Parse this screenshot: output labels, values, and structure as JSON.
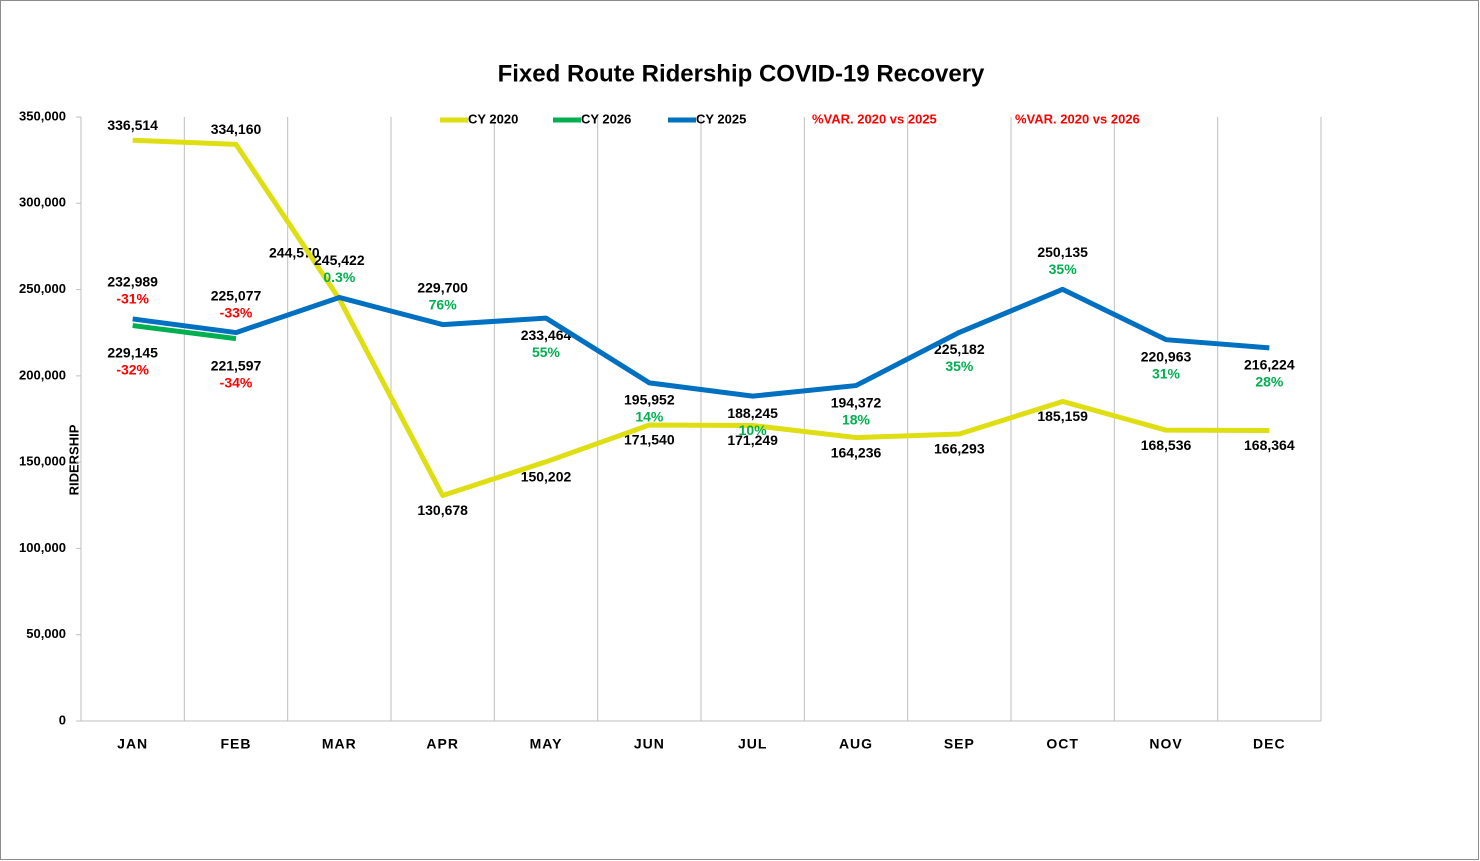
{
  "chart_data": {
    "type": "line",
    "title": "Fixed Route Ridership COVID-19 Recovery",
    "y_label": "RIDERSHIP",
    "categories": [
      "JAN",
      "FEB",
      "MAR",
      "APR",
      "MAY",
      "JUN",
      "JUL",
      "AUG",
      "SEP",
      "OCT",
      "NOV",
      "DEC"
    ],
    "ylim": [
      0,
      350000
    ],
    "yticks": [
      0,
      {
        "value": 50000,
        "label": "50,000"
      },
      {
        "value": 100000,
        "label": "100,000"
      },
      {
        "value": 150000,
        "label": "150,000"
      },
      {
        "value": 200000,
        "label": "200,000"
      },
      {
        "value": 250000,
        "label": "250,000"
      },
      {
        "value": 300000,
        "label": "300,000"
      },
      {
        "value": 350000,
        "label": "350,000"
      }
    ],
    "series": [
      {
        "name": "CY 2020",
        "color": "#dede12",
        "values": [
          336514,
          334160,
          244570,
          130678,
          150202,
          171540,
          171249,
          164236,
          166293,
          185159,
          168536,
          168364
        ],
        "value_labels": [
          "336,514",
          "334,160",
          "244,570",
          "130,678",
          "150,202",
          "171,540",
          "171,249",
          "164,236",
          "166,293",
          "185,159",
          "168,536",
          "168,364"
        ]
      },
      {
        "name": "CY 2026",
        "color": "#00b050",
        "values": [
          229145,
          221597,
          null,
          null,
          null,
          null,
          null,
          null,
          null,
          null,
          null,
          null
        ],
        "value_labels": [
          "229,145",
          "221,597",
          null,
          null,
          null,
          null,
          null,
          null,
          null,
          null,
          null,
          null
        ]
      },
      {
        "name": "CY 2025",
        "color": "#0070c0",
        "values": [
          232989,
          225077,
          245422,
          229700,
          233464,
          195952,
          188245,
          194372,
          225182,
          250135,
          220963,
          216224
        ],
        "value_labels": [
          "232,989",
          "225,077",
          "245,422",
          "229,700",
          "233,464",
          "195,952",
          "188,245",
          "194,372",
          "225,182",
          "250,135",
          "220,963",
          "216,224"
        ]
      },
      {
        "name": "%VAR. 2020 vs 2025",
        "color": "#ff0000",
        "show_line": false,
        "positive_color": "#00b050",
        "negative_color": "#ff0000",
        "values": [
          -31,
          -33,
          0.3,
          76,
          55,
          14,
          10,
          18,
          35,
          35,
          31,
          28
        ],
        "value_labels": [
          "-31%",
          "-33%",
          "0.3%",
          "76%",
          "55%",
          "14%",
          "10%",
          "18%",
          "35%",
          "35%",
          "31%",
          "28%"
        ]
      },
      {
        "name": "%VAR. 2020 vs 2026",
        "color": "#ff0000",
        "show_line": false,
        "positive_color": "#00b050",
        "negative_color": "#ff0000",
        "values": [
          -32,
          -34,
          null,
          null,
          null,
          null,
          null,
          null,
          null,
          null,
          null,
          null
        ],
        "value_labels": [
          "-32%",
          "-34%",
          null,
          null,
          null,
          null,
          null,
          null,
          null,
          null,
          null,
          null
        ]
      }
    ]
  }
}
